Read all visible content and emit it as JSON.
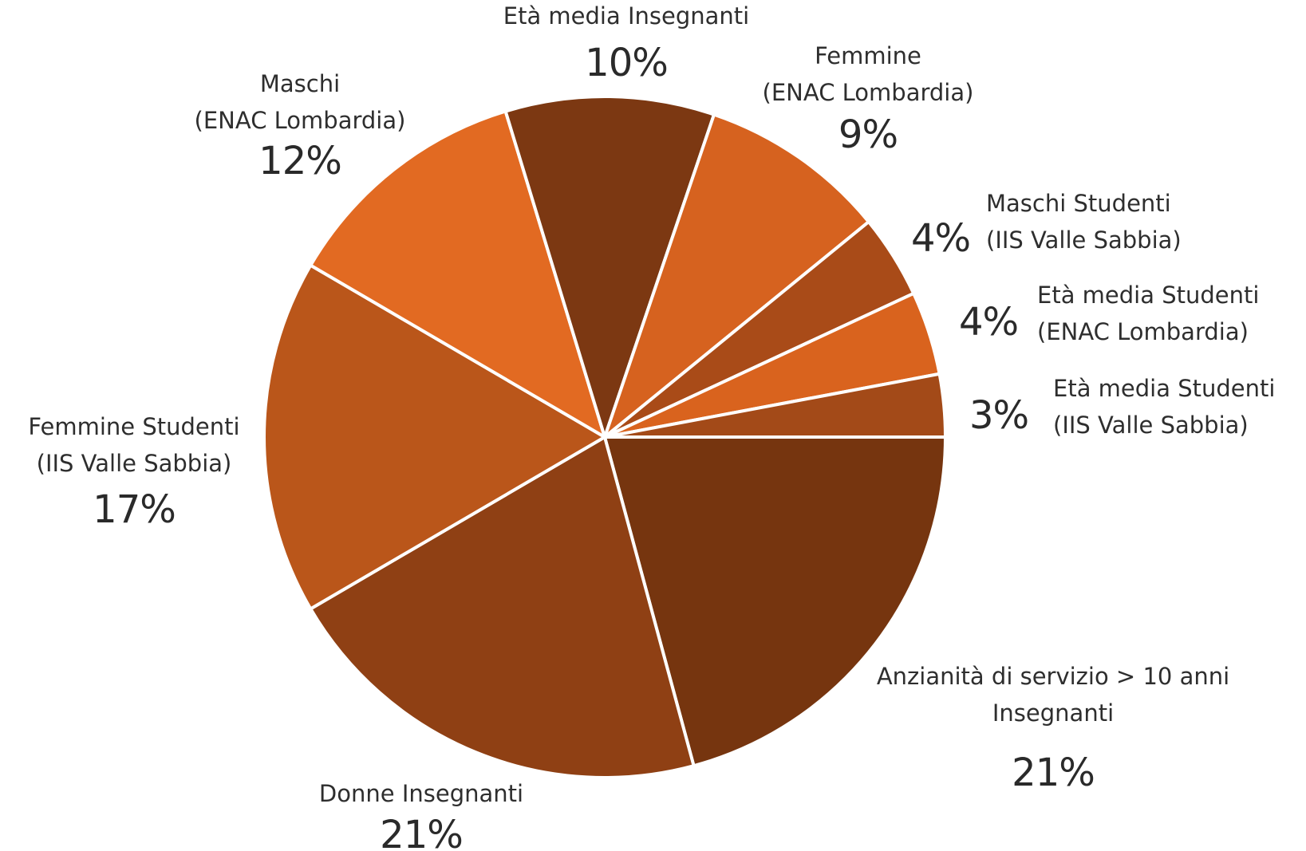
{
  "chart_data": {
    "type": "pie",
    "title": "",
    "start_angle_deg": 0,
    "direction": "clockwise",
    "slices": [
      {
        "label_lines": [
          "Anzianità di servizio > 10 anni",
          "Insegnanti"
        ],
        "value": 21,
        "value_label": "21%",
        "color": "#76350F"
      },
      {
        "label_lines": [
          "Donne Insegnanti"
        ],
        "value": 21,
        "value_label": "21%",
        "color": "#8F4014"
      },
      {
        "label_lines": [
          "Femmine Studenti",
          "(IIS Valle Sabbia)"
        ],
        "value": 17,
        "value_label": "17%",
        "color": "#BA561A"
      },
      {
        "label_lines": [
          "Maschi",
          "(ENAC Lombardia)"
        ],
        "value": 12,
        "value_label": "12%",
        "color": "#E26A22"
      },
      {
        "label_lines": [
          "Età media Insegnanti"
        ],
        "value": 10,
        "value_label": "10%",
        "color": "#7C3812"
      },
      {
        "label_lines": [
          "Femmine",
          "(ENAC Lombardia)"
        ],
        "value": 9,
        "value_label": "9%",
        "color": "#D6621F"
      },
      {
        "label_lines": [
          "Maschi Studenti",
          "(IIS Valle Sabbia)"
        ],
        "value": 4,
        "value_label": "4%",
        "color": "#A94B18"
      },
      {
        "label_lines": [
          "Età media Studenti",
          "(ENAC Lombardia)"
        ],
        "value": 4,
        "value_label": "4%",
        "color": "#D9631E"
      },
      {
        "label_lines": [
          "Età media Studenti",
          "(IIS Valle Sabbia)"
        ],
        "value": 3,
        "value_label": "3%",
        "color": "#A34A18"
      }
    ]
  }
}
